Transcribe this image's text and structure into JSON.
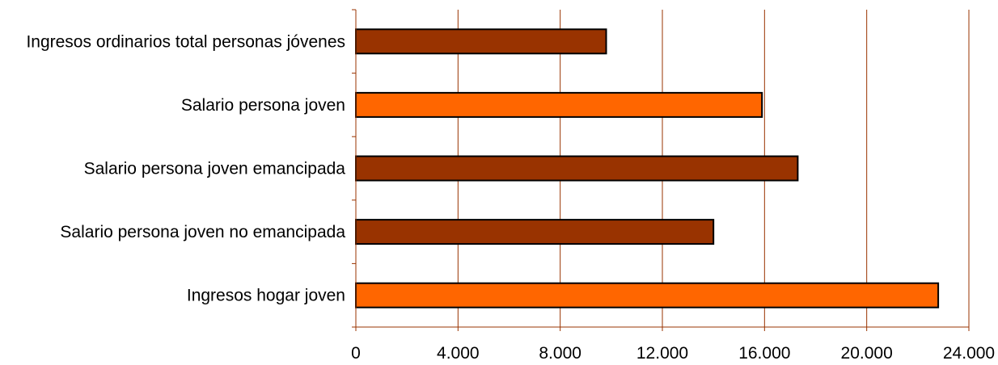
{
  "chart_data": {
    "type": "bar",
    "orientation": "horizontal",
    "title": "",
    "xlabel": "",
    "ylabel": "",
    "categories": [
      "Ingresos ordinarios total personas jóvenes",
      "Salario persona joven",
      "Salario persona joven emancipada",
      "Salario persona joven no emancipada",
      "Ingresos hogar joven"
    ],
    "values": [
      9800,
      15900,
      17300,
      14000,
      22800
    ],
    "bar_colors": [
      "#993300",
      "#FF6600",
      "#993300",
      "#993300",
      "#FF6600"
    ],
    "xlim": [
      0,
      24000
    ],
    "x_ticks": [
      0,
      4000,
      8000,
      12000,
      16000,
      20000,
      24000
    ],
    "x_tick_labels": [
      "0",
      "4.000",
      "8.000",
      "12.000",
      "16.000",
      "20.000",
      "24.000"
    ],
    "grid": "vertical",
    "grid_color": "#993300",
    "bar_border_color": "#000000",
    "legend": "none"
  }
}
